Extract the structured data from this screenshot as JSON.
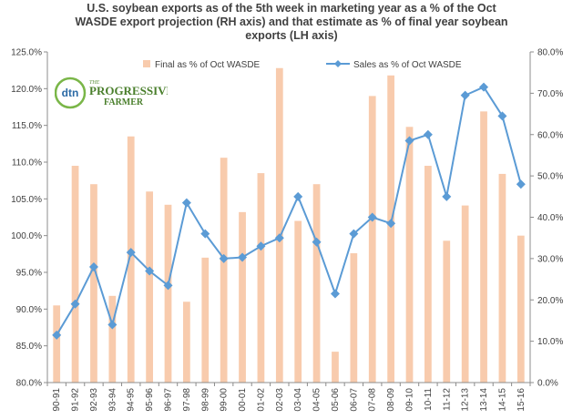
{
  "chart_data": {
    "type": "bar-line-combo",
    "title_lines": [
      "U.S. soybean exports as of the 5th week in marketing year as a % of the Oct",
      "WASDE  export projection (RH axis) and that estimate as % of final year soybean",
      "exports (LH axis)"
    ],
    "categories": [
      "90-91",
      "91-92",
      "92-93",
      "93-94",
      "94-95",
      "95-96",
      "96-97",
      "97-98",
      "98-99",
      "99-00",
      "00-01",
      "01-02",
      "02-03",
      "03-04",
      "04-05",
      "05-06",
      "06-07",
      "07-08",
      "08-09",
      "09-10",
      "10-11",
      "11-12",
      "12-13",
      "13-14",
      "14-15",
      "15-16"
    ],
    "left_axis": {
      "min": 80,
      "max": 125,
      "step": 5,
      "tick_labels": [
        "80.0%",
        "85.0%",
        "90.0%",
        "95.0%",
        "100.0%",
        "105.0%",
        "110.0%",
        "115.0%",
        "120.0%",
        "125.0%"
      ]
    },
    "right_axis": {
      "min": 0,
      "max": 80,
      "step": 10,
      "tick_labels": [
        "0.0%",
        "10.0%",
        "20.0%",
        "30.0%",
        "40.0%",
        "50.0%",
        "60.0%",
        "70.0%",
        "80.0%"
      ]
    },
    "series": [
      {
        "name": "Final as % of Oct WASDE",
        "type": "bar",
        "axis": "left",
        "color": "#f8cbad",
        "values": [
          90.5,
          109.5,
          107.0,
          91.8,
          113.5,
          106.0,
          104.2,
          91.0,
          97.0,
          110.6,
          103.2,
          108.5,
          122.8,
          102.0,
          107.0,
          84.2,
          97.6,
          119.0,
          121.8,
          114.8,
          109.5,
          99.3,
          104.1,
          116.9,
          108.4,
          100.0
        ]
      },
      {
        "name": "Sales as % of Oct WASDE",
        "type": "line",
        "axis": "right",
        "color": "#5b9bd5",
        "marker": "diamond",
        "values": [
          11.5,
          19.0,
          28.0,
          14.0,
          31.5,
          27.0,
          23.5,
          43.5,
          36.0,
          30.0,
          30.3,
          33.0,
          35.0,
          45.0,
          34.0,
          21.5,
          36.0,
          40.0,
          38.5,
          58.5,
          60.0,
          45.0,
          69.5,
          71.5,
          64.5,
          48.0
        ]
      }
    ],
    "legend_position": "top",
    "grid": false
  },
  "logo": {
    "badge_text": "dtn",
    "brand_line1": "THE",
    "brand_line2": "PROGRESSIVE",
    "brand_line3": "FARMER"
  }
}
